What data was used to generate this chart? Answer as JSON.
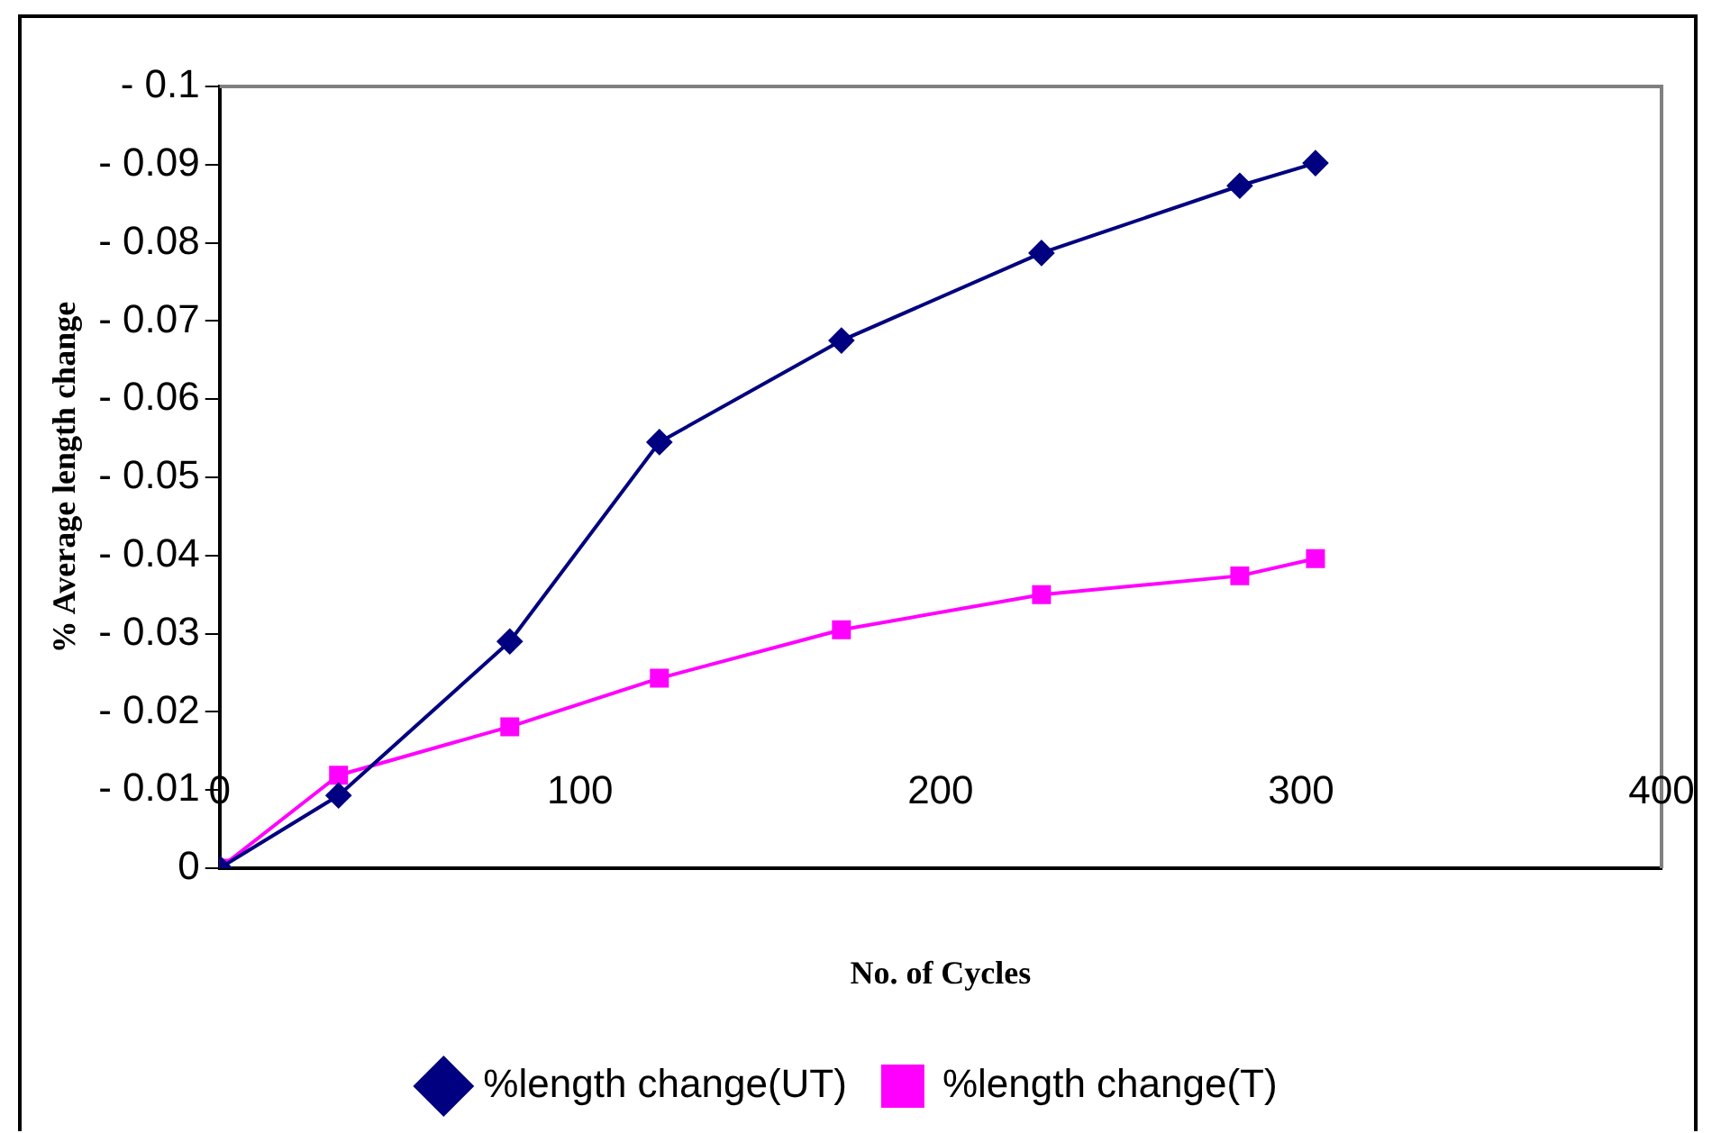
{
  "chart_data": {
    "type": "line",
    "xlabel": "No. of Cycles",
    "ylabel": "% Average length change",
    "xlim": [
      0,
      400
    ],
    "xticks": [
      0,
      100,
      200,
      300,
      400
    ],
    "ylim": [
      0,
      -0.1
    ],
    "yticks": [
      {
        "value": 0,
        "label": "0"
      },
      {
        "value": -0.01,
        "label": "- 0.01"
      },
      {
        "value": -0.02,
        "label": "- 0.02"
      },
      {
        "value": -0.03,
        "label": "- 0.03"
      },
      {
        "value": -0.04,
        "label": "- 0.04"
      },
      {
        "value": -0.05,
        "label": "- 0.05"
      },
      {
        "value": -0.06,
        "label": "- 0.06"
      },
      {
        "value": -0.07,
        "label": "- 0.07"
      },
      {
        "value": -0.08,
        "label": "- 0.08"
      },
      {
        "value": -0.09,
        "label": "- 0.09"
      },
      {
        "value": -0.1,
        "label": "- 0.1"
      }
    ],
    "x": [
      0,
      33,
      80.5,
      122,
      172.5,
      228,
      283,
      304
    ],
    "series": [
      {
        "name": "%length change(UT)",
        "color": "#000080",
        "marker": "diamond",
        "values": [
          0,
          -0.0093,
          -0.029,
          -0.0545,
          -0.0675,
          -0.0787,
          -0.0873,
          -0.0902
        ]
      },
      {
        "name": "%length change(T)",
        "color": "#ff00ff",
        "marker": "square",
        "values": [
          0,
          -0.0119,
          -0.0181,
          -0.0243,
          -0.0305,
          -0.035,
          -0.0374,
          -0.0396
        ]
      }
    ],
    "grid": false,
    "legend": "bottom"
  }
}
